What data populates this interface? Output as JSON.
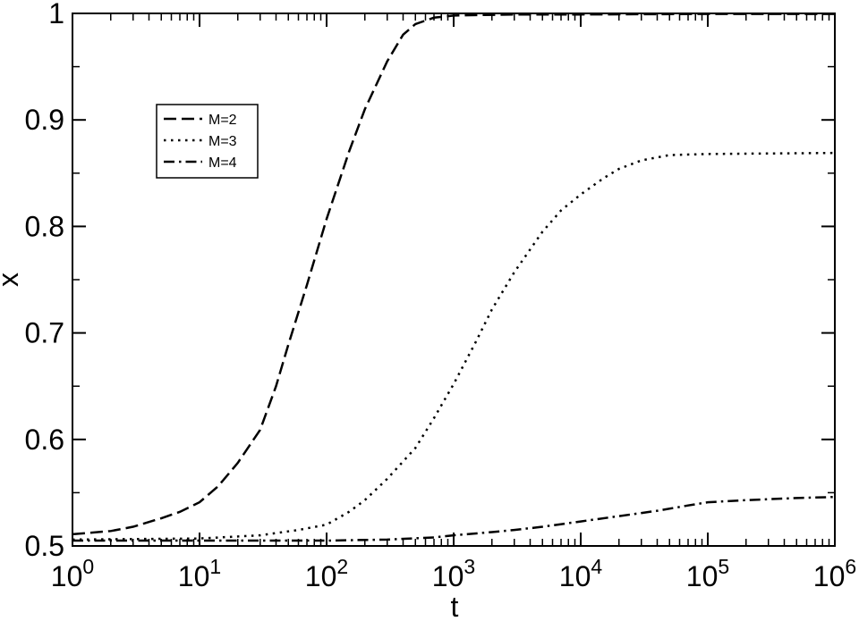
{
  "chart_data": {
    "type": "line",
    "xscale": "log",
    "xlim": [
      1,
      1000000
    ],
    "ylim": [
      0.5,
      1.0
    ],
    "xlabel": "t",
    "ylabel": "x",
    "grid": false,
    "legend_position": "top-left",
    "x_ticks": [
      {
        "value": 1,
        "base": "10",
        "exp": "0"
      },
      {
        "value": 10,
        "base": "10",
        "exp": "1"
      },
      {
        "value": 100,
        "base": "10",
        "exp": "2"
      },
      {
        "value": 1000,
        "base": "10",
        "exp": "3"
      },
      {
        "value": 10000,
        "base": "10",
        "exp": "4"
      },
      {
        "value": 100000,
        "base": "10",
        "exp": "5"
      },
      {
        "value": 1000000,
        "base": "10",
        "exp": "6"
      }
    ],
    "y_ticks": [
      {
        "value": 0.5,
        "label": "0.5"
      },
      {
        "value": 0.6,
        "label": "0.6"
      },
      {
        "value": 0.7,
        "label": "0.7"
      },
      {
        "value": 0.8,
        "label": "0.8"
      },
      {
        "value": 0.9,
        "label": "0.9"
      },
      {
        "value": 1.0,
        "label": "1"
      }
    ],
    "series": [
      {
        "name": "M=2",
        "dash": "dashed",
        "color": "#000000",
        "points": [
          [
            1,
            0.511
          ],
          [
            2,
            0.514
          ],
          [
            3,
            0.518
          ],
          [
            5,
            0.526
          ],
          [
            7,
            0.532
          ],
          [
            10,
            0.541
          ],
          [
            14,
            0.556
          ],
          [
            20,
            0.578
          ],
          [
            30,
            0.609
          ],
          [
            40,
            0.65
          ],
          [
            50,
            0.689
          ],
          [
            70,
            0.745
          ],
          [
            100,
            0.807
          ],
          [
            150,
            0.87
          ],
          [
            200,
            0.91
          ],
          [
            300,
            0.955
          ],
          [
            400,
            0.98
          ],
          [
            500,
            0.99
          ],
          [
            700,
            0.996
          ],
          [
            1000,
            0.998
          ],
          [
            3000,
            0.999
          ],
          [
            10000,
            0.999
          ],
          [
            100000,
            0.9995
          ],
          [
            1000000,
            0.9995
          ]
        ]
      },
      {
        "name": "M=3",
        "dash": "dotted",
        "color": "#000000",
        "points": [
          [
            1,
            0.506
          ],
          [
            10,
            0.507
          ],
          [
            30,
            0.51
          ],
          [
            60,
            0.515
          ],
          [
            100,
            0.52
          ],
          [
            150,
            0.532
          ],
          [
            200,
            0.543
          ],
          [
            300,
            0.563
          ],
          [
            500,
            0.592
          ],
          [
            700,
            0.62
          ],
          [
            1000,
            0.652
          ],
          [
            1500,
            0.692
          ],
          [
            2000,
            0.722
          ],
          [
            3000,
            0.757
          ],
          [
            5000,
            0.795
          ],
          [
            7000,
            0.815
          ],
          [
            10000,
            0.83
          ],
          [
            15000,
            0.845
          ],
          [
            20000,
            0.854
          ],
          [
            30000,
            0.862
          ],
          [
            50000,
            0.867
          ],
          [
            100000,
            0.868
          ],
          [
            1000000,
            0.869
          ]
        ]
      },
      {
        "name": "M=4",
        "dash": "dashdot",
        "color": "#000000",
        "points": [
          [
            1,
            0.505
          ],
          [
            10,
            0.505
          ],
          [
            100,
            0.505
          ],
          [
            300,
            0.506
          ],
          [
            700,
            0.508
          ],
          [
            1000,
            0.51
          ],
          [
            2000,
            0.513
          ],
          [
            3000,
            0.515
          ],
          [
            5000,
            0.518
          ],
          [
            10000,
            0.523
          ],
          [
            20000,
            0.528
          ],
          [
            40000,
            0.533
          ],
          [
            70000,
            0.538
          ],
          [
            100000,
            0.541
          ],
          [
            200000,
            0.543
          ],
          [
            500000,
            0.545
          ],
          [
            1000000,
            0.546
          ]
        ]
      }
    ]
  }
}
